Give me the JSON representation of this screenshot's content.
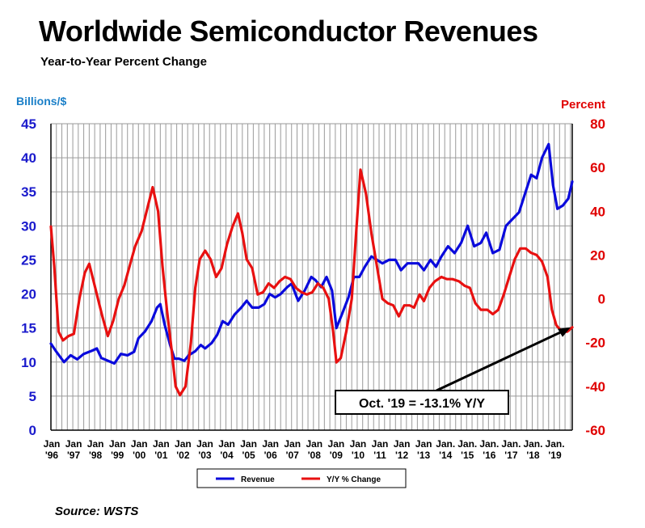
{
  "title": "Worldwide Semiconductor Revenues",
  "subtitle": "Year-to-Year Percent Change",
  "source": "Source: WSTS",
  "chart_data": {
    "type": "line",
    "left_axis": {
      "label": "Billions/$",
      "range": [
        0,
        45
      ],
      "ticks": [
        "0",
        "5",
        "10",
        "15",
        "20",
        "25",
        "30",
        "35",
        "40",
        "45"
      ],
      "color": "#1a1acc"
    },
    "right_axis": {
      "label": "Percent",
      "range": [
        -60,
        80
      ],
      "ticks": [
        "-60",
        "-40",
        "-20",
        "0",
        "20",
        "40",
        "60",
        "80"
      ],
      "color": "#e00000"
    },
    "x_ticks": [
      [
        "Jan",
        "'96"
      ],
      [
        "Jan",
        "'97"
      ],
      [
        "Jan",
        "'98"
      ],
      [
        "Jan",
        "'99"
      ],
      [
        "Jan",
        "'00"
      ],
      [
        "Jan",
        "'01"
      ],
      [
        "Jan",
        "'02"
      ],
      [
        "Jan",
        "'03"
      ],
      [
        "Jan",
        "'04"
      ],
      [
        "Jan",
        "'05"
      ],
      [
        "Jan",
        "'06"
      ],
      [
        "Jan",
        "'07"
      ],
      [
        "Jan",
        "'08"
      ],
      [
        "Jan",
        "'09"
      ],
      [
        "Jan",
        "'10"
      ],
      [
        "Jan",
        "'11"
      ],
      [
        "Jan",
        "'12"
      ],
      [
        "Jan",
        "'13"
      ],
      [
        "Jan.",
        "'14"
      ],
      [
        "Jan.",
        "'15"
      ],
      [
        "Jan.",
        "'16"
      ],
      [
        "Jan.",
        "'17"
      ],
      [
        "Jan.",
        "'18"
      ],
      [
        "Jan.",
        "'19"
      ]
    ],
    "x_range": [
      1996.0,
      2019.83
    ],
    "grid": true,
    "series": [
      {
        "name": "Revenue",
        "axis": "left",
        "color": "#0a0adc",
        "points": [
          [
            1996.0,
            12.7
          ],
          [
            1996.25,
            11.5
          ],
          [
            1996.6,
            10.0
          ],
          [
            1996.9,
            11.0
          ],
          [
            1997.2,
            10.4
          ],
          [
            1997.5,
            11.2
          ],
          [
            1997.9,
            11.7
          ],
          [
            1998.1,
            12.0
          ],
          [
            1998.3,
            10.6
          ],
          [
            1998.6,
            10.2
          ],
          [
            1998.9,
            9.8
          ],
          [
            1999.2,
            11.2
          ],
          [
            1999.5,
            11.0
          ],
          [
            1999.8,
            11.5
          ],
          [
            2000.0,
            13.5
          ],
          [
            2000.3,
            14.5
          ],
          [
            2000.6,
            16.0
          ],
          [
            2000.85,
            18.0
          ],
          [
            2001.0,
            18.5
          ],
          [
            2001.2,
            15.5
          ],
          [
            2001.45,
            12.5
          ],
          [
            2001.65,
            10.5
          ],
          [
            2001.85,
            10.5
          ],
          [
            2002.1,
            10.2
          ],
          [
            2002.3,
            11.0
          ],
          [
            2002.6,
            11.6
          ],
          [
            2002.85,
            12.5
          ],
          [
            2003.05,
            12.0
          ],
          [
            2003.35,
            12.8
          ],
          [
            2003.6,
            14.0
          ],
          [
            2003.85,
            16.0
          ],
          [
            2004.1,
            15.5
          ],
          [
            2004.4,
            17.0
          ],
          [
            2004.7,
            18.0
          ],
          [
            2004.95,
            19.0
          ],
          [
            2005.2,
            18.0
          ],
          [
            2005.5,
            18.0
          ],
          [
            2005.75,
            18.5
          ],
          [
            2006.0,
            20.0
          ],
          [
            2006.25,
            19.5
          ],
          [
            2006.5,
            20.0
          ],
          [
            2006.8,
            21.0
          ],
          [
            2007.0,
            21.5
          ],
          [
            2007.3,
            19.0
          ],
          [
            2007.6,
            20.5
          ],
          [
            2007.9,
            22.5
          ],
          [
            2008.1,
            22.0
          ],
          [
            2008.35,
            21.0
          ],
          [
            2008.6,
            22.5
          ],
          [
            2008.85,
            20.5
          ],
          [
            2009.05,
            15.0
          ],
          [
            2009.3,
            17.0
          ],
          [
            2009.6,
            19.5
          ],
          [
            2009.85,
            22.5
          ],
          [
            2010.1,
            22.5
          ],
          [
            2010.35,
            24.0
          ],
          [
            2010.65,
            25.5
          ],
          [
            2010.9,
            25.0
          ],
          [
            2011.15,
            24.5
          ],
          [
            2011.45,
            25.0
          ],
          [
            2011.75,
            25.0
          ],
          [
            2012.0,
            23.5
          ],
          [
            2012.3,
            24.5
          ],
          [
            2012.55,
            24.5
          ],
          [
            2012.8,
            24.5
          ],
          [
            2013.05,
            23.5
          ],
          [
            2013.35,
            25.0
          ],
          [
            2013.6,
            24.0
          ],
          [
            2013.85,
            25.5
          ],
          [
            2014.15,
            27.0
          ],
          [
            2014.45,
            26.0
          ],
          [
            2014.75,
            27.5
          ],
          [
            2015.05,
            30.0
          ],
          [
            2015.35,
            27.0
          ],
          [
            2015.65,
            27.5
          ],
          [
            2015.9,
            29.0
          ],
          [
            2016.2,
            26.0
          ],
          [
            2016.5,
            26.5
          ],
          [
            2016.8,
            30.0
          ],
          [
            2017.1,
            31.0
          ],
          [
            2017.4,
            32.0
          ],
          [
            2017.7,
            35.0
          ],
          [
            2017.95,
            37.5
          ],
          [
            2018.2,
            37.0
          ],
          [
            2018.45,
            40.0
          ],
          [
            2018.75,
            42.0
          ],
          [
            2018.95,
            36.0
          ],
          [
            2019.15,
            32.5
          ],
          [
            2019.4,
            33.0
          ],
          [
            2019.65,
            34.0
          ],
          [
            2019.83,
            36.5
          ]
        ]
      },
      {
        "name": "Y/Y % Change",
        "axis": "right",
        "color": "#e81010",
        "points": [
          [
            1996.0,
            33
          ],
          [
            1996.15,
            15
          ],
          [
            1996.35,
            -15
          ],
          [
            1996.55,
            -19
          ],
          [
            1996.8,
            -17
          ],
          [
            1997.05,
            -16
          ],
          [
            1997.3,
            0
          ],
          [
            1997.55,
            12
          ],
          [
            1997.75,
            16
          ],
          [
            1997.95,
            8
          ],
          [
            1998.15,
            0
          ],
          [
            1998.35,
            -8
          ],
          [
            1998.6,
            -17
          ],
          [
            1998.85,
            -10
          ],
          [
            1999.1,
            0
          ],
          [
            1999.35,
            6
          ],
          [
            1999.6,
            15
          ],
          [
            1999.85,
            24
          ],
          [
            2000.15,
            31
          ],
          [
            2000.45,
            43
          ],
          [
            2000.65,
            51
          ],
          [
            2000.9,
            40
          ],
          [
            2001.1,
            15
          ],
          [
            2001.3,
            -5
          ],
          [
            2001.5,
            -22
          ],
          [
            2001.7,
            -40
          ],
          [
            2001.9,
            -44
          ],
          [
            2002.15,
            -40
          ],
          [
            2002.4,
            -20
          ],
          [
            2002.6,
            5
          ],
          [
            2002.8,
            18
          ],
          [
            2003.05,
            22
          ],
          [
            2003.3,
            18
          ],
          [
            2003.55,
            10
          ],
          [
            2003.8,
            14
          ],
          [
            2004.05,
            25
          ],
          [
            2004.3,
            33
          ],
          [
            2004.55,
            39
          ],
          [
            2004.75,
            30
          ],
          [
            2004.95,
            18
          ],
          [
            2005.2,
            14
          ],
          [
            2005.45,
            2
          ],
          [
            2005.7,
            3
          ],
          [
            2005.95,
            7
          ],
          [
            2006.2,
            5
          ],
          [
            2006.45,
            8
          ],
          [
            2006.7,
            10
          ],
          [
            2006.95,
            9
          ],
          [
            2007.2,
            5
          ],
          [
            2007.45,
            3
          ],
          [
            2007.7,
            2
          ],
          [
            2007.95,
            3
          ],
          [
            2008.2,
            7
          ],
          [
            2008.45,
            5
          ],
          [
            2008.7,
            0
          ],
          [
            2008.9,
            -15
          ],
          [
            2009.05,
            -29
          ],
          [
            2009.25,
            -27
          ],
          [
            2009.5,
            -15
          ],
          [
            2009.75,
            0
          ],
          [
            2009.95,
            30
          ],
          [
            2010.15,
            59
          ],
          [
            2010.4,
            48
          ],
          [
            2010.65,
            30
          ],
          [
            2010.9,
            15
          ],
          [
            2011.15,
            0
          ],
          [
            2011.4,
            -2
          ],
          [
            2011.65,
            -3
          ],
          [
            2011.9,
            -8
          ],
          [
            2012.15,
            -3
          ],
          [
            2012.4,
            -3
          ],
          [
            2012.6,
            -4
          ],
          [
            2012.85,
            2
          ],
          [
            2013.05,
            -1
          ],
          [
            2013.3,
            5
          ],
          [
            2013.55,
            8
          ],
          [
            2013.85,
            10
          ],
          [
            2014.1,
            9
          ],
          [
            2014.35,
            9
          ],
          [
            2014.65,
            8
          ],
          [
            2014.9,
            6
          ],
          [
            2015.15,
            5
          ],
          [
            2015.4,
            -2
          ],
          [
            2015.65,
            -5
          ],
          [
            2015.95,
            -5
          ],
          [
            2016.2,
            -7
          ],
          [
            2016.45,
            -5
          ],
          [
            2016.7,
            2
          ],
          [
            2016.95,
            10
          ],
          [
            2017.2,
            18
          ],
          [
            2017.45,
            23
          ],
          [
            2017.7,
            23
          ],
          [
            2017.95,
            21
          ],
          [
            2018.2,
            20
          ],
          [
            2018.45,
            17
          ],
          [
            2018.7,
            10
          ],
          [
            2018.9,
            -5
          ],
          [
            2019.1,
            -12
          ],
          [
            2019.35,
            -15
          ],
          [
            2019.6,
            -15
          ],
          [
            2019.83,
            -13
          ]
        ]
      }
    ],
    "annotation": "Oct. '19 = -13.1% Y/Y",
    "legend_position": "bottom-center"
  }
}
